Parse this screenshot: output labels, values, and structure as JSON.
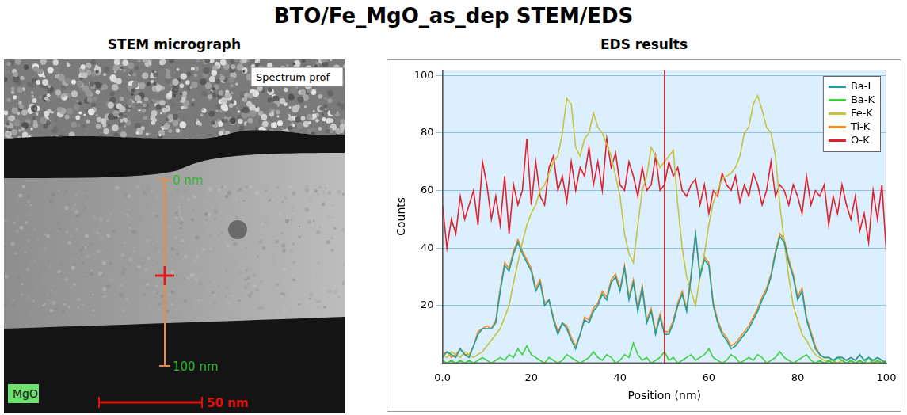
{
  "title": "BTO/Fe_MgO_as_dep STEM/EDS",
  "micrograph": {
    "title": "STEM micrograph",
    "profile_label": "Spectrum prof",
    "profile_start": "0 nm",
    "profile_end": "100 nm",
    "substrate": "MgO",
    "scale_bar": "50 nm"
  },
  "chart_data": {
    "type": "line",
    "title": "EDS results",
    "x_label": "Position (nm)",
    "y_label": "Counts",
    "x": [
      0,
      1,
      2,
      3,
      4,
      5,
      6,
      7,
      8,
      9,
      10,
      11,
      12,
      13,
      14,
      15,
      16,
      17,
      18,
      19,
      20,
      21,
      22,
      23,
      24,
      25,
      26,
      27,
      28,
      29,
      30,
      31,
      32,
      33,
      34,
      35,
      36,
      37,
      38,
      39,
      40,
      41,
      42,
      43,
      44,
      45,
      46,
      47,
      48,
      49,
      50,
      51,
      52,
      53,
      54,
      55,
      56,
      57,
      58,
      59,
      60,
      61,
      62,
      63,
      64,
      65,
      66,
      67,
      68,
      69,
      70,
      71,
      72,
      73,
      74,
      75,
      76,
      77,
      78,
      79,
      80,
      81,
      82,
      83,
      84,
      85,
      86,
      87,
      88,
      89,
      90,
      91,
      92,
      93,
      94,
      95,
      96,
      97,
      98,
      99,
      100
    ],
    "series": [
      {
        "name": "Ba-L",
        "color": "#1f9e9e",
        "values": [
          2,
          4,
          3,
          2,
          5,
          3,
          2,
          6,
          10,
          12,
          12,
          12,
          14,
          25,
          34,
          32,
          38,
          42,
          38,
          35,
          32,
          25,
          28,
          20,
          22,
          15,
          10,
          14,
          12,
          8,
          5,
          10,
          15,
          14,
          18,
          20,
          24,
          22,
          28,
          30,
          25,
          33,
          22,
          28,
          18,
          26,
          14,
          18,
          10,
          16,
          10,
          10,
          14,
          20,
          24,
          18,
          30,
          45,
          30,
          36,
          34,
          20,
          14,
          10,
          8,
          5,
          6,
          8,
          10,
          12,
          15,
          18,
          22,
          25,
          30,
          38,
          44,
          42,
          35,
          30,
          22,
          25,
          15,
          10,
          5,
          3,
          2,
          2,
          1,
          2,
          2,
          1,
          2,
          1,
          3,
          1,
          2,
          1,
          2,
          1,
          0
        ]
      },
      {
        "name": "Ba-K",
        "color": "#3ed13e",
        "values": [
          1,
          0,
          1,
          0,
          1,
          0,
          1,
          0,
          1,
          2,
          1,
          0,
          1,
          2,
          1,
          3,
          2,
          5,
          3,
          6,
          3,
          2,
          1,
          0,
          2,
          1,
          0,
          1,
          3,
          2,
          1,
          0,
          1,
          2,
          4,
          2,
          1,
          3,
          2,
          0,
          1,
          3,
          2,
          7,
          3,
          1,
          2,
          0,
          1,
          2,
          4,
          1,
          2,
          0,
          1,
          2,
          3,
          1,
          2,
          3,
          5,
          2,
          1,
          0,
          1,
          3,
          2,
          0,
          1,
          2,
          1,
          3,
          2,
          0,
          1,
          2,
          4,
          2,
          1,
          0,
          1,
          2,
          3,
          1,
          0,
          1,
          0,
          1,
          0,
          2,
          1,
          0,
          1,
          0,
          1,
          0,
          2,
          0,
          1,
          0,
          1
        ]
      },
      {
        "name": "Fe-K",
        "color": "#c4c43a",
        "values": [
          3,
          2,
          4,
          3,
          2,
          4,
          3,
          2,
          3,
          4,
          6,
          8,
          10,
          12,
          16,
          20,
          28,
          35,
          42,
          48,
          52,
          55,
          60,
          62,
          66,
          70,
          72,
          80,
          92,
          90,
          75,
          72,
          78,
          80,
          87,
          82,
          80,
          76,
          72,
          65,
          58,
          45,
          38,
          35,
          48,
          60,
          65,
          75,
          72,
          68,
          70,
          72,
          74,
          55,
          40,
          30,
          25,
          20,
          30,
          38,
          48,
          56,
          60,
          64,
          65,
          66,
          68,
          72,
          80,
          82,
          90,
          93,
          88,
          82,
          80,
          72,
          55,
          42,
          30,
          20,
          15,
          10,
          8,
          5,
          3,
          2,
          1,
          1,
          1,
          0,
          1,
          0,
          1,
          0,
          1,
          0,
          0,
          1,
          0,
          1,
          0
        ]
      },
      {
        "name": "Ti-K",
        "color": "#f58a1f",
        "values": [
          3,
          4,
          2,
          3,
          5,
          3,
          3,
          6,
          11,
          12,
          13,
          12,
          15,
          26,
          35,
          33,
          39,
          43,
          39,
          36,
          33,
          26,
          29,
          21,
          22,
          16,
          11,
          14,
          13,
          9,
          6,
          10,
          16,
          15,
          19,
          21,
          25,
          23,
          29,
          31,
          26,
          34,
          23,
          29,
          19,
          27,
          15,
          19,
          11,
          17,
          11,
          11,
          15,
          21,
          25,
          19,
          31,
          45,
          31,
          37,
          35,
          21,
          15,
          11,
          9,
          6,
          7,
          9,
          11,
          13,
          16,
          19,
          23,
          26,
          31,
          39,
          45,
          43,
          36,
          31,
          23,
          26,
          16,
          11,
          6,
          3,
          2,
          2,
          1,
          2,
          2,
          1,
          2,
          1,
          3,
          1,
          2,
          1,
          2,
          1,
          0
        ]
      },
      {
        "name": "O-K",
        "color": "#e0202a",
        "values": [
          55,
          40,
          50,
          45,
          58,
          50,
          55,
          60,
          48,
          70,
          62,
          50,
          58,
          48,
          65,
          45,
          62,
          55,
          60,
          78,
          55,
          70,
          58,
          55,
          68,
          72,
          60,
          65,
          56,
          70,
          60,
          68,
          65,
          75,
          62,
          70,
          60,
          78,
          68,
          73,
          62,
          60,
          70,
          65,
          58,
          68,
          60,
          62,
          72,
          60,
          62,
          70,
          65,
          68,
          60,
          58,
          62,
          64,
          55,
          62,
          52,
          60,
          58,
          66,
          62,
          60,
          65,
          56,
          62,
          58,
          66,
          62,
          55,
          60,
          70,
          58,
          62,
          60,
          55,
          62,
          58,
          52,
          65,
          55,
          60,
          58,
          62,
          48,
          58,
          52,
          62,
          55,
          50,
          58,
          46,
          52,
          42,
          60,
          50,
          62,
          38
        ]
      }
    ],
    "xlim": [
      0,
      100
    ],
    "xticks": [
      {
        "value": 0,
        "label": "0.0"
      },
      20,
      40,
      60,
      80,
      100
    ],
    "ylim": [
      0,
      102
    ],
    "yticks": [
      20,
      40,
      60,
      80,
      100
    ],
    "grid": true,
    "legend": "top right",
    "cursor_x": 50
  }
}
